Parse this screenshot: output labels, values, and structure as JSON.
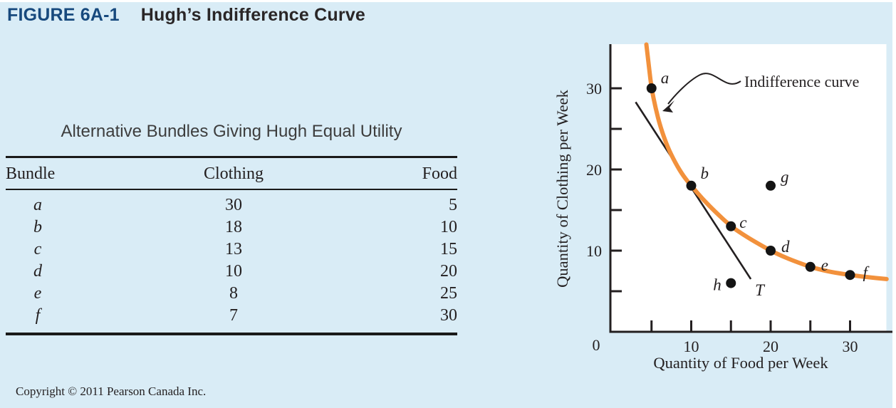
{
  "figure": {
    "label": "FIGURE 6A-1",
    "title": "Hugh’s Indifference Curve"
  },
  "table": {
    "title": "Alternative Bundles Giving Hugh Equal Utility",
    "columns": [
      "Bundle",
      "Clothing",
      "Food"
    ],
    "rows": [
      {
        "bundle": "a",
        "clothing": "30",
        "food": "5"
      },
      {
        "bundle": "b",
        "clothing": "18",
        "food": "10"
      },
      {
        "bundle": "c",
        "clothing": "13",
        "food": "15"
      },
      {
        "bundle": "d",
        "clothing": "10",
        "food": "20"
      },
      {
        "bundle": "e",
        "clothing": "8",
        "food": "25"
      },
      {
        "bundle": "f",
        "clothing": "7",
        "food": "30"
      }
    ]
  },
  "copyright": "Copyright © 2011 Pearson Canada Inc.",
  "chart_data": {
    "type": "line",
    "xlabel": "Quantity of Food per Week",
    "ylabel": "Quantity of Clothing per Week",
    "xlim": [
      0,
      35
    ],
    "ylim": [
      0,
      35
    ],
    "x_ticks": [
      5,
      10,
      15,
      20,
      25,
      30
    ],
    "x_ticks_labeled": [
      "10",
      "20",
      "30"
    ],
    "y_ticks": [
      5,
      10,
      15,
      20,
      25,
      30
    ],
    "y_ticks_labeled": [
      "10",
      "20",
      "30"
    ],
    "origin_label": "0",
    "grid": false,
    "annotation": {
      "text": "Indifference curve"
    },
    "curve_color": "#F2913C",
    "points_on_curve": [
      {
        "label": "a",
        "food": 5,
        "clothing": 30
      },
      {
        "label": "b",
        "food": 10,
        "clothing": 18
      },
      {
        "label": "c",
        "food": 15,
        "clothing": 13
      },
      {
        "label": "d",
        "food": 20,
        "clothing": 10
      },
      {
        "label": "e",
        "food": 25,
        "clothing": 8
      },
      {
        "label": "f",
        "food": 30,
        "clothing": 7
      }
    ],
    "off_curve_points": [
      {
        "label": "g",
        "food": 20,
        "clothing": 18
      },
      {
        "label": "h",
        "food": 15,
        "clothing": 6
      }
    ],
    "tangent_line": {
      "label": "T",
      "tangent_at_point": "b",
      "from": {
        "food": 3,
        "clothing": 28.3
      },
      "to": {
        "food": 17.5,
        "clothing": 6.5
      }
    },
    "curve_samples": [
      [
        4.35,
        35.4
      ],
      [
        4.7,
        32.4
      ],
      [
        5,
        30
      ],
      [
        5.5,
        27.6
      ],
      [
        6.1,
        25.3
      ],
      [
        7,
        22.8
      ],
      [
        8,
        20.8
      ],
      [
        9,
        19.2
      ],
      [
        10,
        18
      ],
      [
        11.4,
        16.4
      ],
      [
        13,
        14.8
      ],
      [
        15,
        13
      ],
      [
        16.5,
        12
      ],
      [
        18,
        11.1
      ],
      [
        20,
        10
      ],
      [
        21.5,
        9.3
      ],
      [
        23,
        8.7
      ],
      [
        25,
        8
      ],
      [
        26.5,
        7.6
      ],
      [
        28,
        7.3
      ],
      [
        30,
        7
      ],
      [
        32,
        6.75
      ],
      [
        34.6,
        6.5
      ]
    ]
  }
}
